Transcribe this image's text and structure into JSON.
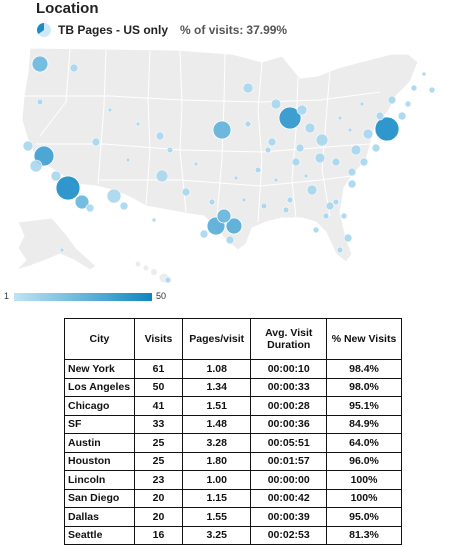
{
  "title": "Location",
  "segment": {
    "name": "TB Pages - US only",
    "pct_label": "% of visits:",
    "pct_value": "37.99%",
    "icon": "pie-segment-icon"
  },
  "legend": {
    "min": "1",
    "max": "50"
  },
  "colors": {
    "land": "#ececec",
    "border": "#ffffff",
    "bubble_light": "#9fd3ec",
    "bubble_dark": "#1a8cc6"
  },
  "table": {
    "headers": [
      "City",
      "Visits",
      "Pages/visit",
      "Avg. Visit Duration",
      "% New Visits"
    ],
    "rows": [
      {
        "city": "New York",
        "visits": "61",
        "pages": "1.08",
        "duration": "00:00:10",
        "new": "98.4%"
      },
      {
        "city": "Los Angeles",
        "visits": "50",
        "pages": "1.34",
        "duration": "00:00:33",
        "new": "98.0%"
      },
      {
        "city": "Chicago",
        "visits": "41",
        "pages": "1.51",
        "duration": "00:00:28",
        "new": "95.1%"
      },
      {
        "city": "SF",
        "visits": "33",
        "pages": "1.48",
        "duration": "00:00:36",
        "new": "84.9%"
      },
      {
        "city": "Austin",
        "visits": "25",
        "pages": "3.28",
        "duration": "00:05:51",
        "new": "64.0%"
      },
      {
        "city": "Houston",
        "visits": "25",
        "pages": "1.80",
        "duration": "00:01:57",
        "new": "96.0%"
      },
      {
        "city": "Lincoln",
        "visits": "23",
        "pages": "1.00",
        "duration": "00:00:00",
        "new": "100%"
      },
      {
        "city": "San Diego",
        "visits": "20",
        "pages": "1.15",
        "duration": "00:00:42",
        "new": "100%"
      },
      {
        "city": "Dallas",
        "visits": "20",
        "pages": "1.55",
        "duration": "00:00:39",
        "new": "95.0%"
      },
      {
        "city": "Seattle",
        "visits": "16",
        "pages": "3.25",
        "duration": "00:02:53",
        "new": "81.3%"
      }
    ]
  }
}
